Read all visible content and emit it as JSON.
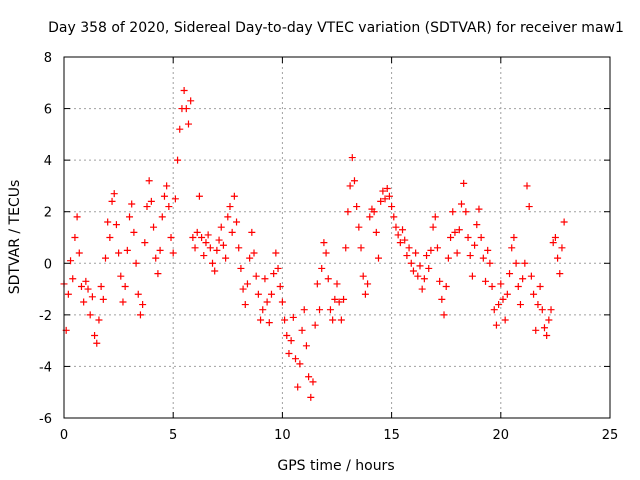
{
  "chart_data": {
    "type": "scatter",
    "title": "Day 358 of 2020, Sidereal Day-to-day VTEC variation (SDTVAR) for receiver maw1",
    "xlabel": "GPS time / hours",
    "ylabel": "SDTVAR / TECUs",
    "xlim": [
      0,
      25
    ],
    "ylim": [
      -6,
      8
    ],
    "xticks": [
      0,
      5,
      10,
      15,
      20,
      25
    ],
    "yticks": [
      -6,
      -4,
      -2,
      0,
      2,
      4,
      6,
      8
    ],
    "grid": true,
    "marker": "+",
    "marker_color": "#ff0000",
    "series": [
      {
        "name": "SDTVAR",
        "points": [
          [
            0.0,
            -0.8
          ],
          [
            0.1,
            -2.6
          ],
          [
            0.2,
            -1.2
          ],
          [
            0.3,
            0.1
          ],
          [
            0.4,
            -0.6
          ],
          [
            0.5,
            1.0
          ],
          [
            0.6,
            1.8
          ],
          [
            0.7,
            0.4
          ],
          [
            0.8,
            -0.9
          ],
          [
            0.9,
            -1.5
          ],
          [
            1.0,
            -0.7
          ],
          [
            1.1,
            -1.0
          ],
          [
            1.2,
            -2.0
          ],
          [
            1.3,
            -1.3
          ],
          [
            1.4,
            -2.8
          ],
          [
            1.5,
            -3.1
          ],
          [
            1.6,
            -2.2
          ],
          [
            1.7,
            -0.9
          ],
          [
            1.8,
            -1.4
          ],
          [
            1.9,
            0.2
          ],
          [
            2.0,
            1.6
          ],
          [
            2.1,
            1.0
          ],
          [
            2.2,
            2.4
          ],
          [
            2.3,
            2.7
          ],
          [
            2.4,
            1.5
          ],
          [
            2.5,
            0.4
          ],
          [
            2.6,
            -0.5
          ],
          [
            2.7,
            -1.5
          ],
          [
            2.8,
            -0.9
          ],
          [
            2.9,
            0.5
          ],
          [
            3.0,
            1.8
          ],
          [
            3.1,
            2.3
          ],
          [
            3.2,
            1.2
          ],
          [
            3.3,
            0.0
          ],
          [
            3.4,
            -1.2
          ],
          [
            3.5,
            -2.0
          ],
          [
            3.6,
            -1.6
          ],
          [
            3.7,
            0.8
          ],
          [
            3.8,
            2.2
          ],
          [
            3.9,
            3.2
          ],
          [
            4.0,
            2.4
          ],
          [
            4.1,
            1.4
          ],
          [
            4.2,
            0.2
          ],
          [
            4.3,
            -0.4
          ],
          [
            4.4,
            0.5
          ],
          [
            4.5,
            1.8
          ],
          [
            4.6,
            2.6
          ],
          [
            4.7,
            3.0
          ],
          [
            4.8,
            2.2
          ],
          [
            4.9,
            1.0
          ],
          [
            5.0,
            0.4
          ],
          [
            5.1,
            2.5
          ],
          [
            5.2,
            4.0
          ],
          [
            5.3,
            5.2
          ],
          [
            5.4,
            6.0
          ],
          [
            5.5,
            6.7
          ],
          [
            5.6,
            6.0
          ],
          [
            5.7,
            5.4
          ],
          [
            5.8,
            6.3
          ],
          [
            5.9,
            1.0
          ],
          [
            6.0,
            0.6
          ],
          [
            6.1,
            1.2
          ],
          [
            6.2,
            2.6
          ],
          [
            6.3,
            1.0
          ],
          [
            6.4,
            0.3
          ],
          [
            6.5,
            0.8
          ],
          [
            6.6,
            1.1
          ],
          [
            6.7,
            0.6
          ],
          [
            6.8,
            0.0
          ],
          [
            6.9,
            -0.3
          ],
          [
            7.0,
            0.5
          ],
          [
            7.1,
            0.9
          ],
          [
            7.2,
            1.4
          ],
          [
            7.3,
            0.7
          ],
          [
            7.4,
            0.2
          ],
          [
            7.5,
            1.8
          ],
          [
            7.6,
            2.2
          ],
          [
            7.7,
            1.2
          ],
          [
            7.8,
            2.6
          ],
          [
            7.9,
            1.6
          ],
          [
            8.0,
            0.6
          ],
          [
            8.1,
            -0.2
          ],
          [
            8.2,
            -1.0
          ],
          [
            8.3,
            -1.6
          ],
          [
            8.4,
            -0.8
          ],
          [
            8.5,
            0.2
          ],
          [
            8.6,
            1.2
          ],
          [
            8.7,
            0.4
          ],
          [
            8.8,
            -0.5
          ],
          [
            8.9,
            -1.2
          ],
          [
            9.0,
            -2.2
          ],
          [
            9.1,
            -1.8
          ],
          [
            9.2,
            -0.6
          ],
          [
            9.3,
            -1.5
          ],
          [
            9.4,
            -2.3
          ],
          [
            9.5,
            -1.2
          ],
          [
            9.6,
            -0.4
          ],
          [
            9.7,
            0.4
          ],
          [
            9.8,
            -0.2
          ],
          [
            9.9,
            -0.9
          ],
          [
            10.0,
            -1.5
          ],
          [
            10.1,
            -2.2
          ],
          [
            10.2,
            -2.8
          ],
          [
            10.3,
            -3.5
          ],
          [
            10.4,
            -3.0
          ],
          [
            10.5,
            -2.1
          ],
          [
            10.6,
            -3.7
          ],
          [
            10.7,
            -4.8
          ],
          [
            10.8,
            -3.9
          ],
          [
            10.9,
            -2.6
          ],
          [
            11.0,
            -1.8
          ],
          [
            11.1,
            -3.2
          ],
          [
            11.2,
            -4.4
          ],
          [
            11.3,
            -5.2
          ],
          [
            11.4,
            -4.6
          ],
          [
            11.5,
            -2.4
          ],
          [
            11.6,
            -0.8
          ],
          [
            11.7,
            -1.8
          ],
          [
            11.8,
            -0.2
          ],
          [
            11.9,
            0.8
          ],
          [
            12.0,
            0.4
          ],
          [
            12.1,
            -0.6
          ],
          [
            12.2,
            -1.8
          ],
          [
            12.3,
            -2.2
          ],
          [
            12.4,
            -1.4
          ],
          [
            12.5,
            -0.8
          ],
          [
            12.6,
            -1.5
          ],
          [
            12.7,
            -2.2
          ],
          [
            12.8,
            -1.4
          ],
          [
            12.9,
            0.6
          ],
          [
            13.0,
            2.0
          ],
          [
            13.1,
            3.0
          ],
          [
            13.2,
            4.1
          ],
          [
            13.3,
            3.2
          ],
          [
            13.4,
            2.2
          ],
          [
            13.5,
            1.4
          ],
          [
            13.6,
            0.6
          ],
          [
            13.7,
            -0.5
          ],
          [
            13.8,
            -1.2
          ],
          [
            13.9,
            -0.8
          ],
          [
            14.0,
            1.8
          ],
          [
            14.1,
            2.1
          ],
          [
            14.2,
            2.0
          ],
          [
            14.3,
            1.2
          ],
          [
            14.4,
            0.2
          ],
          [
            14.5,
            2.4
          ],
          [
            14.6,
            2.8
          ],
          [
            14.7,
            2.5
          ],
          [
            14.8,
            2.9
          ],
          [
            14.9,
            2.6
          ],
          [
            15.0,
            2.2
          ],
          [
            15.1,
            1.8
          ],
          [
            15.2,
            1.4
          ],
          [
            15.3,
            1.1
          ],
          [
            15.4,
            0.8
          ],
          [
            15.5,
            1.3
          ],
          [
            15.6,
            0.9
          ],
          [
            15.7,
            0.3
          ],
          [
            15.8,
            0.6
          ],
          [
            15.9,
            0.0
          ],
          [
            16.0,
            -0.3
          ],
          [
            16.1,
            0.4
          ],
          [
            16.2,
            -0.5
          ],
          [
            16.3,
            -0.1
          ],
          [
            16.4,
            -1.0
          ],
          [
            16.5,
            -0.6
          ],
          [
            16.6,
            0.3
          ],
          [
            16.7,
            -0.2
          ],
          [
            16.8,
            0.5
          ],
          [
            16.9,
            1.4
          ],
          [
            17.0,
            1.8
          ],
          [
            17.1,
            0.6
          ],
          [
            17.2,
            -0.7
          ],
          [
            17.3,
            -1.4
          ],
          [
            17.4,
            -2.0
          ],
          [
            17.5,
            -0.9
          ],
          [
            17.6,
            0.2
          ],
          [
            17.7,
            1.0
          ],
          [
            17.8,
            2.0
          ],
          [
            17.9,
            1.2
          ],
          [
            18.0,
            0.4
          ],
          [
            18.1,
            1.3
          ],
          [
            18.2,
            2.3
          ],
          [
            18.3,
            3.1
          ],
          [
            18.4,
            2.0
          ],
          [
            18.5,
            1.0
          ],
          [
            18.6,
            0.3
          ],
          [
            18.7,
            -0.5
          ],
          [
            18.8,
            0.7
          ],
          [
            18.9,
            1.5
          ],
          [
            19.0,
            2.1
          ],
          [
            19.1,
            1.0
          ],
          [
            19.2,
            0.2
          ],
          [
            19.3,
            -0.7
          ],
          [
            19.4,
            0.5
          ],
          [
            19.5,
            0.0
          ],
          [
            19.6,
            -0.9
          ],
          [
            19.7,
            -1.8
          ],
          [
            19.8,
            -2.4
          ],
          [
            19.9,
            -1.6
          ],
          [
            20.0,
            -0.8
          ],
          [
            20.1,
            -1.4
          ],
          [
            20.2,
            -2.2
          ],
          [
            20.3,
            -1.2
          ],
          [
            20.4,
            -0.4
          ],
          [
            20.5,
            0.6
          ],
          [
            20.6,
            1.0
          ],
          [
            20.7,
            0.0
          ],
          [
            20.8,
            -0.9
          ],
          [
            20.9,
            -1.6
          ],
          [
            21.0,
            -0.6
          ],
          [
            21.1,
            0.0
          ],
          [
            21.2,
            3.0
          ],
          [
            21.3,
            2.2
          ],
          [
            21.4,
            -0.5
          ],
          [
            21.5,
            -1.2
          ],
          [
            21.6,
            -2.6
          ],
          [
            21.7,
            -1.6
          ],
          [
            21.8,
            -0.9
          ],
          [
            21.9,
            -1.8
          ],
          [
            22.0,
            -2.5
          ],
          [
            22.1,
            -2.8
          ],
          [
            22.2,
            -2.2
          ],
          [
            22.3,
            -1.8
          ],
          [
            22.4,
            0.8
          ],
          [
            22.5,
            1.0
          ],
          [
            22.6,
            0.2
          ],
          [
            22.7,
            -0.4
          ],
          [
            22.8,
            0.6
          ],
          [
            22.9,
            1.6
          ]
        ]
      }
    ]
  }
}
